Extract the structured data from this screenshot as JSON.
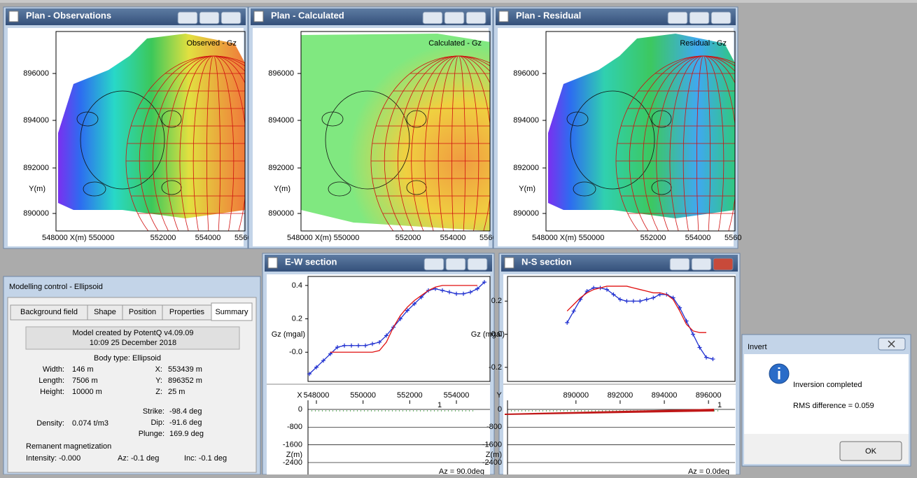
{
  "plan_windows": [
    {
      "title": "Plan - Observations",
      "map_label": "Observed - Gz",
      "yticks": [
        "896000",
        "894000",
        "892000",
        "890000"
      ],
      "ylabel": "Y(m)",
      "xticks": [
        "548000 X(m) 550000",
        "552000",
        "554000",
        "5560"
      ]
    },
    {
      "title": "Plan - Calculated",
      "map_label": "Calculated - Gz",
      "yticks": [
        "896000",
        "894000",
        "892000",
        "890000"
      ],
      "ylabel": "Y(m)",
      "xticks": [
        "548000 X(m) 550000",
        "552000",
        "554000",
        "5560"
      ]
    },
    {
      "title": "Plan - Residual",
      "map_label": "Residual - Gz",
      "yticks": [
        "896000",
        "894000",
        "892000",
        "890000"
      ],
      "ylabel": "Y(m)",
      "xticks": [
        "548000 X(m) 550000",
        "552000",
        "554000",
        "5560"
      ]
    }
  ],
  "sections": [
    {
      "title": "E-W section",
      "type": "line",
      "ylabel": "Gz (mgal)",
      "axis_letter": "X",
      "station_label": "1",
      "azimuth": "Az = 90.0deg",
      "xlim": [
        547640,
        555440
      ],
      "xticks": [
        548000,
        550000,
        552000,
        554000
      ],
      "ylim": [
        0.454,
        -0.175
      ],
      "yticks": [
        0.4,
        0.2,
        {
          "value": 0,
          "label": "-0.0"
        }
      ],
      "zlim": [
        474,
        -2940
      ],
      "zticks": [
        0,
        -800,
        -1600,
        -2400
      ],
      "zlabel": "Z(m)",
      "x": [
        547700,
        548000,
        548300,
        548600,
        548900,
        549200,
        549500,
        549800,
        550100,
        550400,
        550700,
        551000,
        551300,
        551600,
        551900,
        552200,
        552500,
        552800,
        553100,
        553400,
        553700,
        554000,
        554300,
        554600,
        554900,
        555200
      ],
      "series": [
        {
          "color": "#1f2fd0",
          "marker": "+",
          "values": [
            -0.13,
            -0.09,
            -0.05,
            -0.01,
            0.03,
            0.04,
            0.04,
            0.04,
            0.04,
            0.05,
            0.06,
            0.1,
            0.15,
            0.2,
            0.25,
            0.29,
            0.33,
            0.37,
            0.38,
            0.37,
            0.36,
            0.35,
            0.35,
            0.36,
            0.38,
            0.42
          ]
        },
        {
          "color": "#e01010",
          "values": [
            null,
            null,
            null,
            0.0,
            0.0,
            0.0,
            0.0,
            0.0,
            0.0,
            0.0,
            0.01,
            0.06,
            0.15,
            0.22,
            0.27,
            0.31,
            0.34,
            0.37,
            0.39,
            0.4,
            0.4,
            0.4,
            0.4,
            0.4,
            0.4,
            null
          ]
        }
      ]
    },
    {
      "title": "N-S section",
      "type": "line",
      "ylabel": "Gz (mgal)",
      "axis_letter": "Y",
      "station_label": "1",
      "azimuth": "Az = 0.0deg",
      "xlim": [
        886900,
        897200
      ],
      "xticks": [
        890000,
        892000,
        894000,
        896000
      ],
      "ylim": [
        0.349,
        -0.285
      ],
      "yticks": [
        0.2,
        {
          "value": 0,
          "label": "0.0"
        },
        -0.2
      ],
      "zlim": [
        474,
        -2940
      ],
      "zticks": [
        0,
        -800,
        -1600,
        -2400
      ],
      "zlabel": "Z(m)",
      "x": [
        889600,
        889900,
        890200,
        890500,
        890800,
        891100,
        891400,
        891700,
        892000,
        892300,
        892600,
        892900,
        893200,
        893500,
        893800,
        894100,
        894400,
        894700,
        895000,
        895300,
        895600,
        895900,
        896200
      ],
      "series": [
        {
          "color": "#1f2fd0",
          "marker": "+",
          "values": [
            0.07,
            0.14,
            0.21,
            0.26,
            0.28,
            0.28,
            0.27,
            0.24,
            0.21,
            0.2,
            0.2,
            0.2,
            0.21,
            0.22,
            0.24,
            0.24,
            0.22,
            0.16,
            0.08,
            0.0,
            -0.08,
            -0.14,
            -0.15
          ]
        },
        {
          "color": "#e01010",
          "values": [
            0.14,
            0.18,
            0.22,
            0.25,
            0.27,
            0.28,
            0.29,
            0.29,
            0.29,
            0.29,
            0.28,
            0.27,
            0.26,
            0.25,
            0.25,
            0.24,
            0.21,
            0.14,
            0.06,
            0.02,
            0.01,
            0.01,
            null
          ]
        }
      ]
    }
  ],
  "modelling": {
    "title": "Modelling control - Ellipsoid",
    "tabs": [
      "Background field",
      "Shape",
      "Position",
      "Properties",
      "Summary"
    ],
    "created": "Model created by PotentQ v4.09.09",
    "timestamp": "10:09  25 December 2018",
    "body_type": "Body type: Ellipsoid",
    "rows": [
      [
        "Width:",
        "146 m",
        "X:",
        "553439 m"
      ],
      [
        "Length:",
        "7506 m",
        "Y:",
        "896352 m"
      ],
      [
        "Height:",
        "10000 m",
        "Z:",
        "25 m"
      ]
    ],
    "angles": [
      [
        "Strike:",
        "-98.4 deg"
      ],
      [
        "Dip:",
        "-91.6 deg"
      ],
      [
        "Plunge:",
        "169.9 deg"
      ]
    ],
    "density_label": "Density:",
    "density": "0.074 t/m3",
    "remanent": "Remanent magnetization",
    "intensity": "Intensity:  -0.000",
    "az": "Az:  -0.1 deg",
    "inc": "Inc:  -0.1 deg"
  },
  "dialog": {
    "title": "Invert",
    "message": "Inversion completed",
    "rms": "RMS difference = 0.059",
    "button": "OK"
  }
}
